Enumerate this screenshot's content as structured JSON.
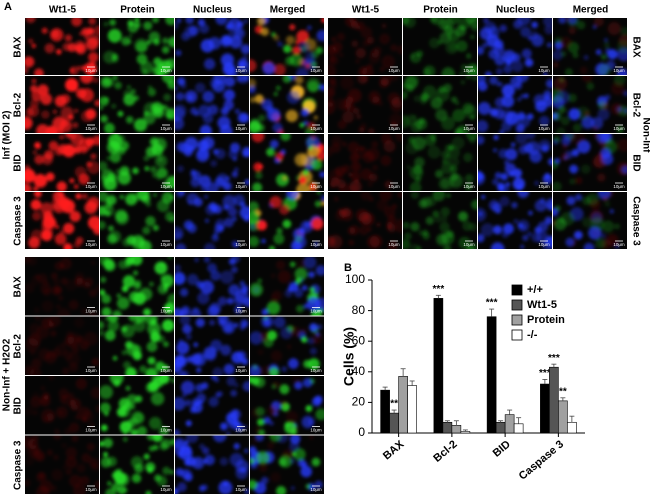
{
  "panel_a": {
    "label": "A",
    "column_headers": [
      "Wt1-5",
      "Protein",
      "Nucleus",
      "Merged"
    ],
    "row_labels": [
      "BAX",
      "Bcl-2",
      "BID",
      "Caspase 3"
    ],
    "groups": [
      "Inf (MOI 2)",
      "Non-Inf",
      "Non-Inf + H2O2"
    ],
    "scale_bar": "10μm"
  },
  "chart_data": {
    "type": "bar",
    "panel_label": "B",
    "y_label": "Cells (%)",
    "categories": [
      "BAX",
      "Bcl-2",
      "BID",
      "Caspase 3"
    ],
    "series": [
      {
        "name": "+/+",
        "color": "#000000",
        "values": [
          28,
          88,
          76,
          32
        ],
        "errors": [
          2,
          2,
          5,
          3
        ],
        "significance": [
          null,
          "***",
          "***",
          "***"
        ]
      },
      {
        "name": "Wt1-5",
        "color": "#555555",
        "values": [
          13,
          7,
          7,
          43
        ],
        "errors": [
          2,
          1,
          1,
          2
        ],
        "significance": [
          "**",
          null,
          null,
          "***"
        ]
      },
      {
        "name": "Protein",
        "color": "#a0a0a0",
        "values": [
          37,
          5,
          12,
          21
        ],
        "errors": [
          5,
          3,
          3,
          2
        ],
        "significance": [
          null,
          null,
          null,
          "**"
        ]
      },
      {
        "name": "-/-",
        "color": "#ffffff",
        "values": [
          31,
          1,
          6,
          7
        ],
        "errors": [
          3,
          1,
          4,
          4
        ],
        "significance": [
          null,
          null,
          null,
          null
        ]
      }
    ],
    "ylim": [
      0,
      100
    ],
    "yticks": [
      0,
      20,
      40,
      60,
      80,
      100
    ],
    "legend": "top-right"
  }
}
